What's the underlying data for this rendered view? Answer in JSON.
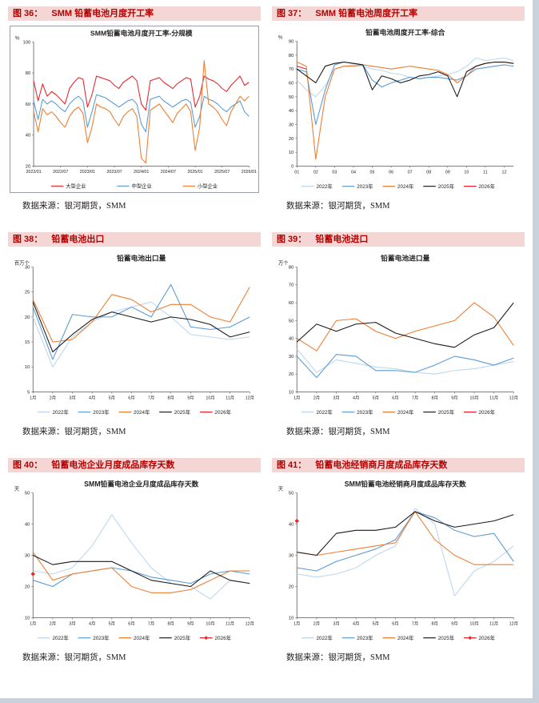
{
  "panels": [
    {
      "fig": "图 36：",
      "title": "SMM 铅蓄电池月度开工率",
      "source": "数据来源：银河期货，SMM"
    },
    {
      "fig": "图 37：",
      "title": "SMM 铅蓄电池周度开工率",
      "source": "数据来源：银河期货，SMM"
    },
    {
      "fig": "图 38：",
      "title": "铅蓄电池出口",
      "source": "数据来源：银河期货，SMM"
    },
    {
      "fig": "图 39：",
      "title": "铅蓄电池进口",
      "source": "数据来源：银河期货，SMM"
    },
    {
      "fig": "图 40：",
      "title": "铅蓄电池企业月度成品库存天数",
      "source": "数据来源：银河期货，SMM"
    },
    {
      "fig": "图 41：",
      "title": "铅蓄电池经销商月度成品库存天数",
      "source": "数据来源：银河期货，SMM"
    }
  ],
  "chart_data": [
    {
      "type": "line",
      "title": "SMM铅蓄电池月度开工率-分规模",
      "unit": "%",
      "ymin": 20,
      "ymax": 100,
      "ystep": 20,
      "categories": [
        "2022/01",
        "",
        "",
        "",
        "",
        "",
        "2022/07",
        "",
        "",
        "",
        "",
        "",
        "2023/01",
        "",
        "",
        "",
        "",
        "",
        "2023/07",
        "",
        "",
        "",
        "",
        "",
        "2024/01",
        "",
        "",
        "",
        "",
        "",
        "2024/07",
        "",
        "",
        "",
        "",
        "",
        "2025/01",
        "",
        "",
        "",
        "",
        "",
        "2025/07",
        "",
        "",
        "",
        "",
        "",
        "2026/01"
      ],
      "series": [
        {
          "name": "大型企业",
          "color": "#e8262c",
          "values": [
            75,
            62,
            73,
            65,
            68,
            66,
            63,
            60,
            70,
            74,
            77,
            76,
            58,
            66,
            78,
            77,
            76,
            75,
            72,
            70,
            74,
            76,
            78,
            75,
            60,
            56,
            75,
            76,
            77,
            74,
            72,
            70,
            73,
            75,
            77,
            76,
            58,
            65,
            78,
            76,
            75,
            73,
            70,
            68,
            72,
            75,
            78,
            72,
            74
          ]
        },
        {
          "name": "中型企业",
          "color": "#5b9bd5",
          "values": [
            62,
            50,
            63,
            60,
            62,
            60,
            57,
            55,
            60,
            63,
            65,
            62,
            45,
            55,
            66,
            65,
            64,
            62,
            60,
            58,
            60,
            62,
            63,
            60,
            47,
            42,
            63,
            64,
            65,
            62,
            60,
            58,
            60,
            62,
            63,
            61,
            45,
            52,
            65,
            63,
            62,
            60,
            57,
            55,
            58,
            60,
            62,
            55,
            52
          ]
        },
        {
          "name": "小型企业",
          "color": "#ed7d31",
          "values": [
            55,
            42,
            57,
            53,
            55,
            52,
            48,
            45,
            52,
            56,
            58,
            54,
            35,
            45,
            60,
            58,
            57,
            55,
            50,
            46,
            52,
            55,
            57,
            52,
            25,
            22,
            56,
            58,
            60,
            56,
            52,
            48,
            54,
            57,
            60,
            55,
            30,
            45,
            88,
            60,
            58,
            55,
            50,
            46,
            55,
            60,
            65,
            62,
            65
          ]
        }
      ]
    },
    {
      "type": "line",
      "title": "铅蓄电池周度开工率-综合",
      "unit": "%",
      "ymin": 0,
      "ymax": 90,
      "ystep": 10,
      "categories": [
        "01",
        "",
        "02",
        "",
        "03",
        "",
        "04",
        "",
        "05",
        "",
        "06",
        "",
        "07",
        "",
        "08",
        "",
        "09",
        "",
        "10",
        "",
        "11",
        "",
        "12",
        ""
      ],
      "series": [
        {
          "name": "2022年",
          "color": "#bdd7ee",
          "values": [
            62,
            55,
            50,
            58,
            70,
            72,
            73,
            72,
            70,
            69,
            67,
            66,
            64,
            63,
            64,
            65,
            66,
            68,
            72,
            78,
            76,
            77,
            78,
            76
          ]
        },
        {
          "name": "2023年",
          "color": "#5b9bd5",
          "values": [
            70,
            68,
            30,
            55,
            73,
            75,
            74,
            73,
            62,
            57,
            60,
            62,
            64,
            63,
            64,
            64,
            63,
            62,
            65,
            70,
            71,
            72,
            73,
            72
          ]
        },
        {
          "name": "2024年",
          "color": "#ed7d31",
          "values": [
            75,
            72,
            5,
            50,
            70,
            72,
            72,
            73,
            72,
            71,
            70,
            71,
            72,
            71,
            70,
            69,
            66,
            60,
            65,
            72,
            74,
            75,
            75,
            74
          ]
        },
        {
          "name": "2025年",
          "color": "#1a1a1a",
          "values": [
            70,
            65,
            60,
            72,
            74,
            75,
            74,
            73,
            55,
            65,
            63,
            60,
            62,
            65,
            66,
            68,
            65,
            50,
            68,
            72,
            74,
            75,
            75,
            74
          ]
        },
        {
          "name": "2026年",
          "color": "#e8262c",
          "values": [
            72,
            70,
            null,
            null,
            null,
            null,
            null,
            null,
            null,
            null,
            null,
            null,
            null,
            null,
            null,
            null,
            null,
            null,
            null,
            null,
            null,
            null,
            null,
            null
          ]
        }
      ]
    },
    {
      "type": "line",
      "title": "铅蓄电池出口量",
      "unit": "百万个",
      "ymin": 5,
      "ymax": 30,
      "ystep": 5,
      "categories": [
        "1月",
        "2月",
        "3月",
        "4月",
        "5月",
        "6月",
        "7月",
        "8月",
        "9月",
        "10月",
        "11月",
        "12月"
      ],
      "series": [
        {
          "name": "2022年",
          "color": "#bdd7ee",
          "values": [
            20,
            10,
            16,
            19,
            21,
            22,
            23,
            20,
            16.5,
            16,
            15.5,
            16
          ]
        },
        {
          "name": "2023年",
          "color": "#5b9bd5",
          "values": [
            22,
            11.5,
            20.5,
            20,
            20,
            22,
            20,
            26.5,
            18,
            17.5,
            18,
            20
          ]
        },
        {
          "name": "2024年",
          "color": "#ed7d31",
          "values": [
            23.5,
            15,
            15.5,
            19,
            24.5,
            23.5,
            21,
            22.5,
            22.5,
            20,
            19,
            26
          ]
        },
        {
          "name": "2025年",
          "color": "#1a1a1a",
          "values": [
            23,
            13,
            16.5,
            19.5,
            21,
            20,
            19,
            20,
            19.5,
            18.5,
            16,
            17
          ]
        },
        {
          "name": "2026年",
          "color": "#e8262c",
          "values": []
        }
      ]
    },
    {
      "type": "line",
      "title": "铅蓄电池进口量",
      "unit": "万个",
      "ymin": 10,
      "ymax": 80,
      "ystep": 10,
      "categories": [
        "1月",
        "2月",
        "3月",
        "4月",
        "5月",
        "6月",
        "7月",
        "8月",
        "9月",
        "10月",
        "11月",
        "12月"
      ],
      "series": [
        {
          "name": "2022年",
          "color": "#bdd7ee",
          "values": [
            34,
            21,
            28,
            26,
            24,
            23,
            21,
            20,
            22,
            23,
            25,
            27
          ]
        },
        {
          "name": "2023年",
          "color": "#5b9bd5",
          "values": [
            30,
            18,
            31,
            30,
            22,
            22,
            21,
            25,
            30,
            28,
            25,
            29
          ]
        },
        {
          "name": "2024年",
          "color": "#ed7d31",
          "values": [
            40,
            33,
            50,
            51,
            44,
            40,
            44,
            47,
            50,
            60,
            52,
            36
          ]
        },
        {
          "name": "2025年",
          "color": "#1a1a1a",
          "values": [
            38,
            48,
            44,
            48,
            49,
            43,
            40,
            37,
            35,
            42,
            46,
            60
          ]
        },
        {
          "name": "2026年",
          "color": "#e8262c",
          "values": []
        }
      ]
    },
    {
      "type": "line",
      "title": "SMM铅蓄电池企业月度成品库存天数",
      "unit": "天",
      "ymin": 10,
      "ymax": 50,
      "ystep": 10,
      "categories": [
        "1月",
        "2月",
        "3月",
        "4月",
        "5月",
        "6月",
        "7月",
        "8月",
        "9月",
        "10月",
        "11月",
        "12月"
      ],
      "series": [
        {
          "name": "2022年",
          "color": "#bdd7ee",
          "values": [
            25,
            24,
            26,
            33,
            43,
            34,
            26,
            21,
            20,
            16,
            22,
            21
          ]
        },
        {
          "name": "2023年",
          "color": "#5b9bd5",
          "values": [
            22,
            20,
            24,
            25,
            26,
            25,
            23,
            22,
            21,
            24,
            25,
            24
          ]
        },
        {
          "name": "2024年",
          "color": "#ed7d31",
          "values": [
            31,
            22,
            24,
            25,
            26,
            20,
            18,
            18,
            19,
            22,
            25,
            25
          ]
        },
        {
          "name": "2025年",
          "color": "#1a1a1a",
          "values": [
            30,
            27,
            28,
            28,
            28,
            25,
            22,
            21,
            20,
            25,
            22,
            21
          ]
        },
        {
          "name": "2026年",
          "color": "#e8262c",
          "marker": "diamond",
          "values": [
            24,
            null,
            null,
            null,
            null,
            null,
            null,
            null,
            null,
            null,
            null,
            null
          ]
        }
      ]
    },
    {
      "type": "line",
      "title": "SMM铅蓄电池经销商月度成品库存天数",
      "unit": "天",
      "ymin": 10,
      "ymax": 50,
      "ystep": 10,
      "categories": [
        "1月",
        "2月",
        "3月",
        "4月",
        "5月",
        "6月",
        "7月",
        "8月",
        "9月",
        "10月",
        "11月",
        "12月"
      ],
      "series": [
        {
          "name": "2022年",
          "color": "#bdd7ee",
          "values": [
            24,
            23,
            24,
            26,
            30,
            33,
            45,
            40,
            17,
            25,
            28,
            33
          ]
        },
        {
          "name": "2023年",
          "color": "#5b9bd5",
          "values": [
            26,
            25,
            28,
            30,
            32,
            35,
            44,
            42,
            38,
            36,
            37,
            28
          ]
        },
        {
          "name": "2024年",
          "color": "#ed7d31",
          "values": [
            31,
            30,
            31,
            32,
            33,
            34,
            44,
            35,
            30,
            27,
            27,
            27
          ]
        },
        {
          "name": "2025年",
          "color": "#1a1a1a",
          "values": [
            31,
            30,
            37,
            38,
            38,
            39,
            44,
            41,
            39,
            40,
            41,
            43
          ]
        },
        {
          "name": "2026年",
          "color": "#e8262c",
          "marker": "diamond",
          "values": [
            41,
            null,
            null,
            null,
            null,
            null,
            null,
            null,
            null,
            null,
            null,
            null
          ]
        }
      ]
    }
  ]
}
